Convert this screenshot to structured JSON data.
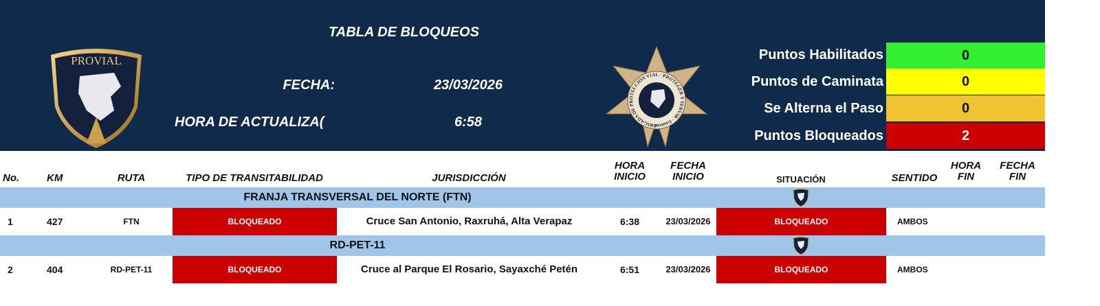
{
  "header": {
    "title": "TABLA DE BLOQUEOS",
    "fecha_label": "FECHA:",
    "fecha_value": "23/03/2026",
    "hora_label": "HORA DE ACTUALIZA(",
    "hora_value": "6:58",
    "logo_text": "PROVIAL",
    "badge_text": "BRIGADA DE PROTECCIÓN VIAL · PROTEGER Y SERVIR · Guatemala, C.A."
  },
  "legend": [
    {
      "label": "Puntos Habilitados",
      "value": "0",
      "color": "#33ee33",
      "text_color": "#111111"
    },
    {
      "label": "Puntos de Caminata",
      "value": "0",
      "color": "#ffff00",
      "text_color": "#111111"
    },
    {
      "label": "Se Alterna el Paso",
      "value": "0",
      "color": "#f1c232",
      "text_color": "#111111"
    },
    {
      "label": "Puntos Bloqueados",
      "value": "2",
      "color": "#cc0000",
      "text_color": "#ffffff"
    }
  ],
  "columns": {
    "no": "No.",
    "km": "KM",
    "ruta": "RUTA",
    "tipo": "TIPO DE TRANSITABILIDAD",
    "juris": "JURISDICCIÓN",
    "hora_inicio_1": "HORA",
    "hora_inicio_2": "INICIO",
    "fecha_inicio_1": "FECHA",
    "fecha_inicio_2": "INICIO",
    "situacion": "SITUACIÓN",
    "sentido": "SENTIDO",
    "hora_fin_1": "HORA",
    "hora_fin_2": "FIN",
    "fecha_fin_1": "FECHA",
    "fecha_fin_2": "FIN"
  },
  "groups": [
    {
      "title": "FRANJA TRANSVERSAL DEL NORTE (FTN)",
      "row": {
        "no": "1",
        "km": "427",
        "ruta": "FTN",
        "tipo": "BLOQUEADO",
        "juris": "Cruce San Antonio, Raxruhá, Alta Verapaz",
        "hora_inicio": "6:38",
        "fecha_inicio": "23/03/2026",
        "situacion": "BLOQUEADO",
        "sentido": "AMBOS",
        "hora_fin": "",
        "fecha_fin": ""
      }
    },
    {
      "title": "RD-PET-11",
      "row": {
        "no": "2",
        "km": "404",
        "ruta": "RD-PET-11",
        "tipo": "BLOQUEADO",
        "juris": "Cruce al Parque El Rosario, Sayaxché Petén",
        "hora_inicio": "6:51",
        "fecha_inicio": "23/03/2026",
        "situacion": "BLOQUEADO",
        "sentido": "AMBOS",
        "hora_fin": "",
        "fecha_fin": ""
      }
    }
  ],
  "colors": {
    "header_bg": "#0f2a4a",
    "group_bg": "#9fc5e8",
    "blocked": "#cc0000"
  }
}
